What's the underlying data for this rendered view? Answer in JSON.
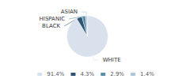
{
  "chart_data": {
    "type": "pie",
    "categories": [
      "WHITE",
      "BLACK",
      "HISPANIC",
      "ASIAN"
    ],
    "values": [
      91.4,
      4.3,
      2.9,
      1.4
    ],
    "value_labels": [
      "91.4%",
      "4.3%",
      "2.9%",
      "1.4%"
    ],
    "colors": [
      "#d9e2ec",
      "#2d5474",
      "#5b8fa8",
      "#b0c8d9"
    ],
    "legend": "bottom"
  }
}
